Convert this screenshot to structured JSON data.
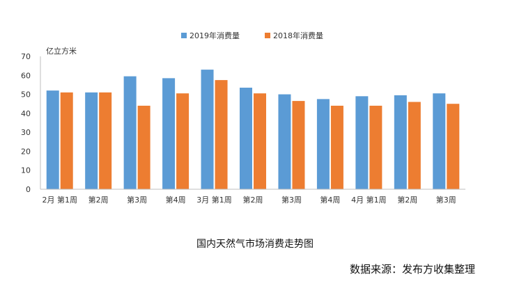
{
  "chart_data": {
    "type": "bar",
    "title": "国内天然气市场消费走势图",
    "ylabel": "亿立方米",
    "ylim": [
      0,
      70
    ],
    "yticks": [
      0,
      10,
      20,
      30,
      40,
      50,
      60,
      70
    ],
    "grid": false,
    "legend_position": "top",
    "categories": [
      "2月 第1周",
      "第2周",
      "第3周",
      "第4周",
      "3月 第1周",
      "第2周",
      "第3周",
      "第4周",
      "4月 第1周",
      "第2周",
      "第3周"
    ],
    "series": [
      {
        "name": "2019年消费量",
        "color": "#5b9bd5",
        "values": [
          52,
          51,
          59.5,
          58.5,
          63,
          53.5,
          50,
          47.5,
          49,
          49.5,
          50.5
        ]
      },
      {
        "name": "2018年消费量",
        "color": "#ed7d31",
        "values": [
          51,
          51,
          44,
          50.5,
          57.5,
          50.5,
          46.5,
          44,
          44,
          46,
          45
        ]
      }
    ]
  },
  "footer": {
    "source": "数据来源：发布方收集整理"
  }
}
